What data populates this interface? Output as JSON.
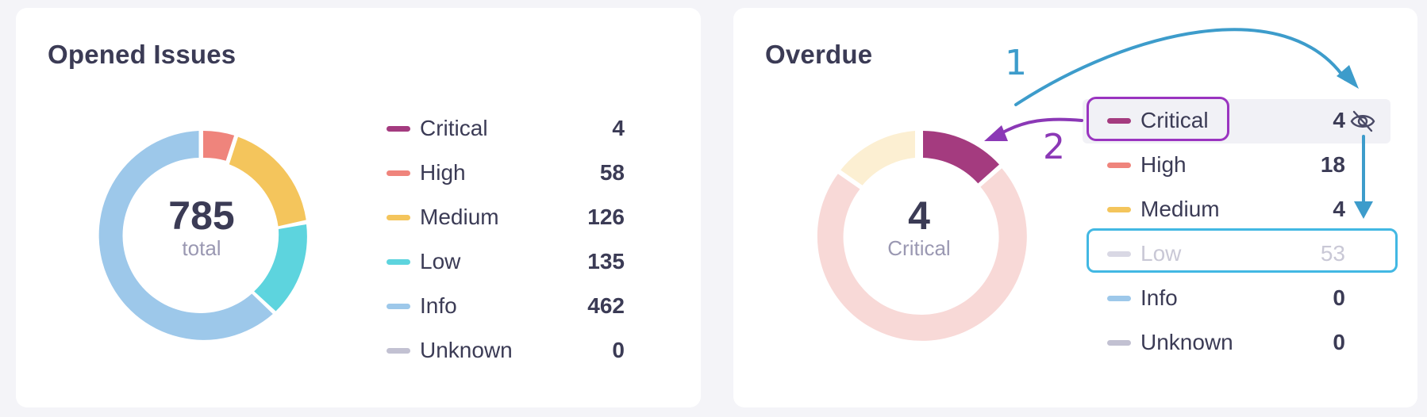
{
  "opened_issues": {
    "title": "Opened Issues",
    "center_value": "785",
    "center_label": "total",
    "items": [
      {
        "label": "Critical",
        "value": "4",
        "color": "#a43b7f"
      },
      {
        "label": "High",
        "value": "58",
        "color": "#ef847c"
      },
      {
        "label": "Medium",
        "value": "126",
        "color": "#f4c55c"
      },
      {
        "label": "Low",
        "value": "135",
        "color": "#5dd4de"
      },
      {
        "label": "Info",
        "value": "462",
        "color": "#9dc8ea"
      },
      {
        "label": "Unknown",
        "value": "0",
        "color": "#c2c1d2"
      }
    ]
  },
  "overdue": {
    "title": "Overdue",
    "center_value": "4",
    "center_label": "Critical",
    "items": [
      {
        "label": "Critical",
        "value": "4",
        "color": "#a43b7f",
        "state": "hovered"
      },
      {
        "label": "High",
        "value": "18",
        "color": "#ef847c"
      },
      {
        "label": "Medium",
        "value": "4",
        "color": "#f4c55c"
      },
      {
        "label": "Low",
        "value": "53",
        "color": "#d9d8e4",
        "state": "hidden"
      },
      {
        "label": "Info",
        "value": "0",
        "color": "#9dc8ea"
      },
      {
        "label": "Unknown",
        "value": "0",
        "color": "#c2c1d2"
      }
    ],
    "faded_colors": {
      "high": "#f8d9d7",
      "medium": "#fcefd2"
    },
    "hover_action_icon": "eye-off-icon"
  },
  "annotations": {
    "step_1": "1",
    "step_2": "2",
    "colors": {
      "step_1": "#3d9ccb",
      "step_2": "#8b38b6",
      "highlight_blue": "#42b8e3"
    }
  }
}
